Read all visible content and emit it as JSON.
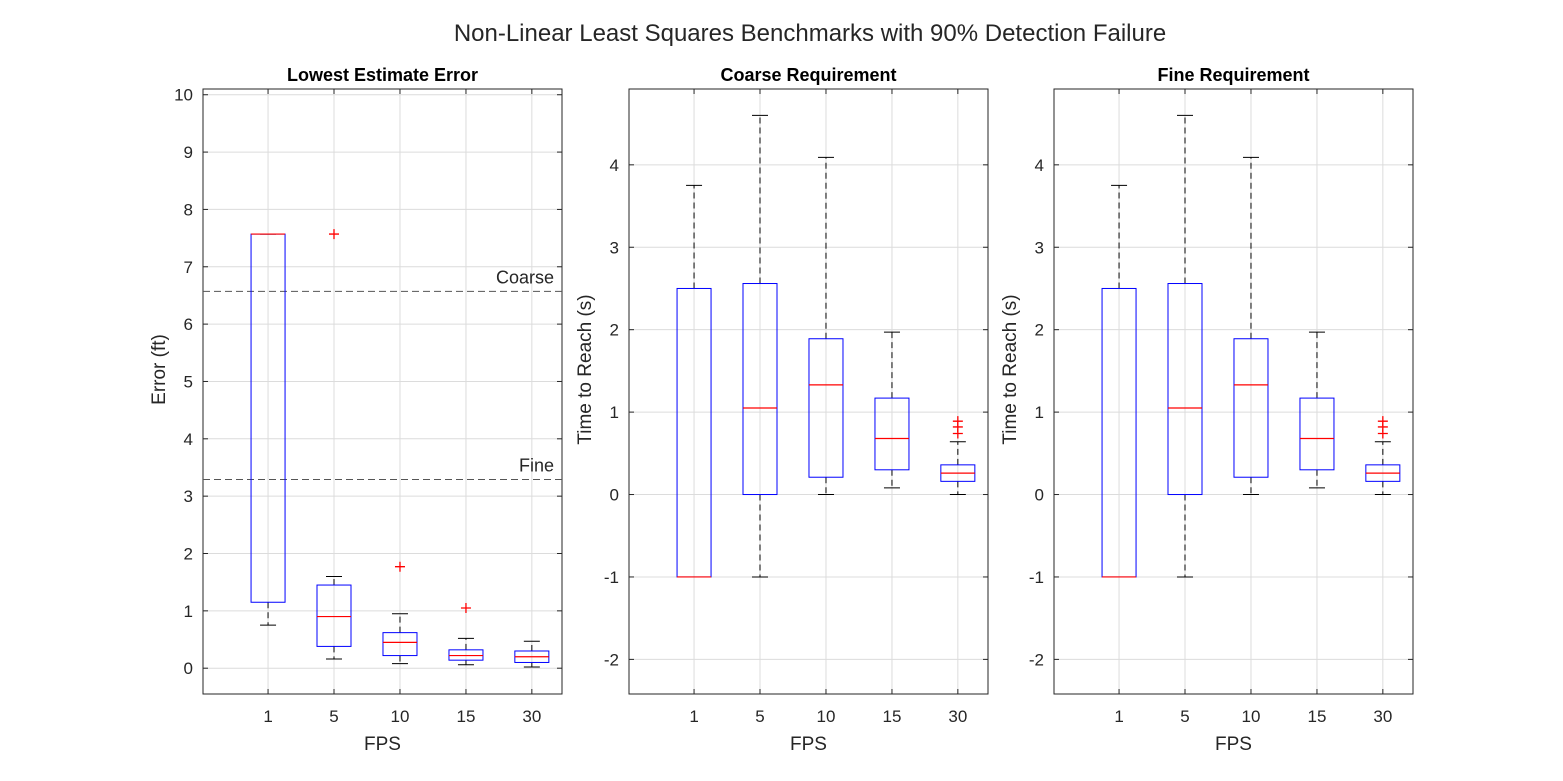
{
  "figure": {
    "title": "Non-Linear Least Squares Benchmarks with 90% Detection Failure"
  },
  "colors": {
    "box": "#0000ff",
    "median": "#ff0000",
    "outlier": "#ff0000",
    "whisker": "#000000",
    "grid": "#dcdcdc",
    "axis": "#262626",
    "reference_line": "#555555"
  },
  "chart_data": [
    {
      "type": "box",
      "title": "Lowest Estimate Error",
      "xlabel": "FPS",
      "ylabel": "Error (ft)",
      "categories": [
        "1",
        "5",
        "10",
        "15",
        "30"
      ],
      "ylim": [
        -0.45,
        10.1
      ],
      "yticks": [
        0,
        1,
        2,
        3,
        4,
        5,
        6,
        7,
        8,
        9,
        10
      ],
      "grid": true,
      "boxes": [
        {
          "q1": 1.15,
          "median": 7.57,
          "q3": 7.57,
          "whisker_low": 0.75,
          "whisker_high": 7.57,
          "outliers": []
        },
        {
          "q1": 0.38,
          "median": 0.9,
          "q3": 1.45,
          "whisker_low": 0.16,
          "whisker_high": 1.6,
          "outliers": [
            7.57
          ]
        },
        {
          "q1": 0.22,
          "median": 0.45,
          "q3": 0.62,
          "whisker_low": 0.08,
          "whisker_high": 0.95,
          "outliers": [
            1.77
          ]
        },
        {
          "q1": 0.14,
          "median": 0.22,
          "q3": 0.32,
          "whisker_low": 0.06,
          "whisker_high": 0.52,
          "outliers": [
            1.05
          ]
        },
        {
          "q1": 0.1,
          "median": 0.2,
          "q3": 0.3,
          "whisker_low": 0.02,
          "whisker_high": 0.47,
          "outliers": []
        }
      ],
      "reference_lines": [
        {
          "label": "Coarse",
          "y": 6.57
        },
        {
          "label": "Fine",
          "y": 3.29
        }
      ]
    },
    {
      "type": "box",
      "title": "Coarse Requirement",
      "xlabel": "FPS",
      "ylabel": "Time to Reach (s)",
      "categories": [
        "1",
        "5",
        "10",
        "15",
        "30"
      ],
      "ylim": [
        -2.42,
        4.92
      ],
      "yticks": [
        -2,
        -1,
        0,
        1,
        2,
        3,
        4
      ],
      "grid": true,
      "boxes": [
        {
          "q1": -1.0,
          "median": -1.0,
          "q3": 2.5,
          "whisker_low": -1.0,
          "whisker_high": 3.75,
          "outliers": []
        },
        {
          "q1": 0.0,
          "median": 1.05,
          "q3": 2.56,
          "whisker_low": -1.0,
          "whisker_high": 4.6,
          "outliers": []
        },
        {
          "q1": 0.21,
          "median": 1.33,
          "q3": 1.89,
          "whisker_low": 0.0,
          "whisker_high": 4.09,
          "outliers": []
        },
        {
          "q1": 0.3,
          "median": 0.68,
          "q3": 1.17,
          "whisker_low": 0.08,
          "whisker_high": 1.97,
          "outliers": []
        },
        {
          "q1": 0.16,
          "median": 0.26,
          "q3": 0.36,
          "whisker_low": 0.0,
          "whisker_high": 0.64,
          "outliers": [
            0.74,
            0.82,
            0.89
          ]
        }
      ]
    },
    {
      "type": "box",
      "title": "Fine Requirement",
      "xlabel": "FPS",
      "ylabel": "Time to Reach (s)",
      "categories": [
        "1",
        "5",
        "10",
        "15",
        "30"
      ],
      "ylim": [
        -2.42,
        4.92
      ],
      "yticks": [
        -2,
        -1,
        0,
        1,
        2,
        3,
        4
      ],
      "grid": true,
      "boxes": [
        {
          "q1": -1.0,
          "median": -1.0,
          "q3": 2.5,
          "whisker_low": -1.0,
          "whisker_high": 3.75,
          "outliers": []
        },
        {
          "q1": 0.0,
          "median": 1.05,
          "q3": 2.56,
          "whisker_low": -1.0,
          "whisker_high": 4.6,
          "outliers": []
        },
        {
          "q1": 0.21,
          "median": 1.33,
          "q3": 1.89,
          "whisker_low": 0.0,
          "whisker_high": 4.09,
          "outliers": []
        },
        {
          "q1": 0.3,
          "median": 0.68,
          "q3": 1.17,
          "whisker_low": 0.08,
          "whisker_high": 1.97,
          "outliers": []
        },
        {
          "q1": 0.16,
          "median": 0.26,
          "q3": 0.36,
          "whisker_low": 0.0,
          "whisker_high": 0.64,
          "outliers": [
            0.74,
            0.82,
            0.89
          ]
        }
      ]
    }
  ]
}
